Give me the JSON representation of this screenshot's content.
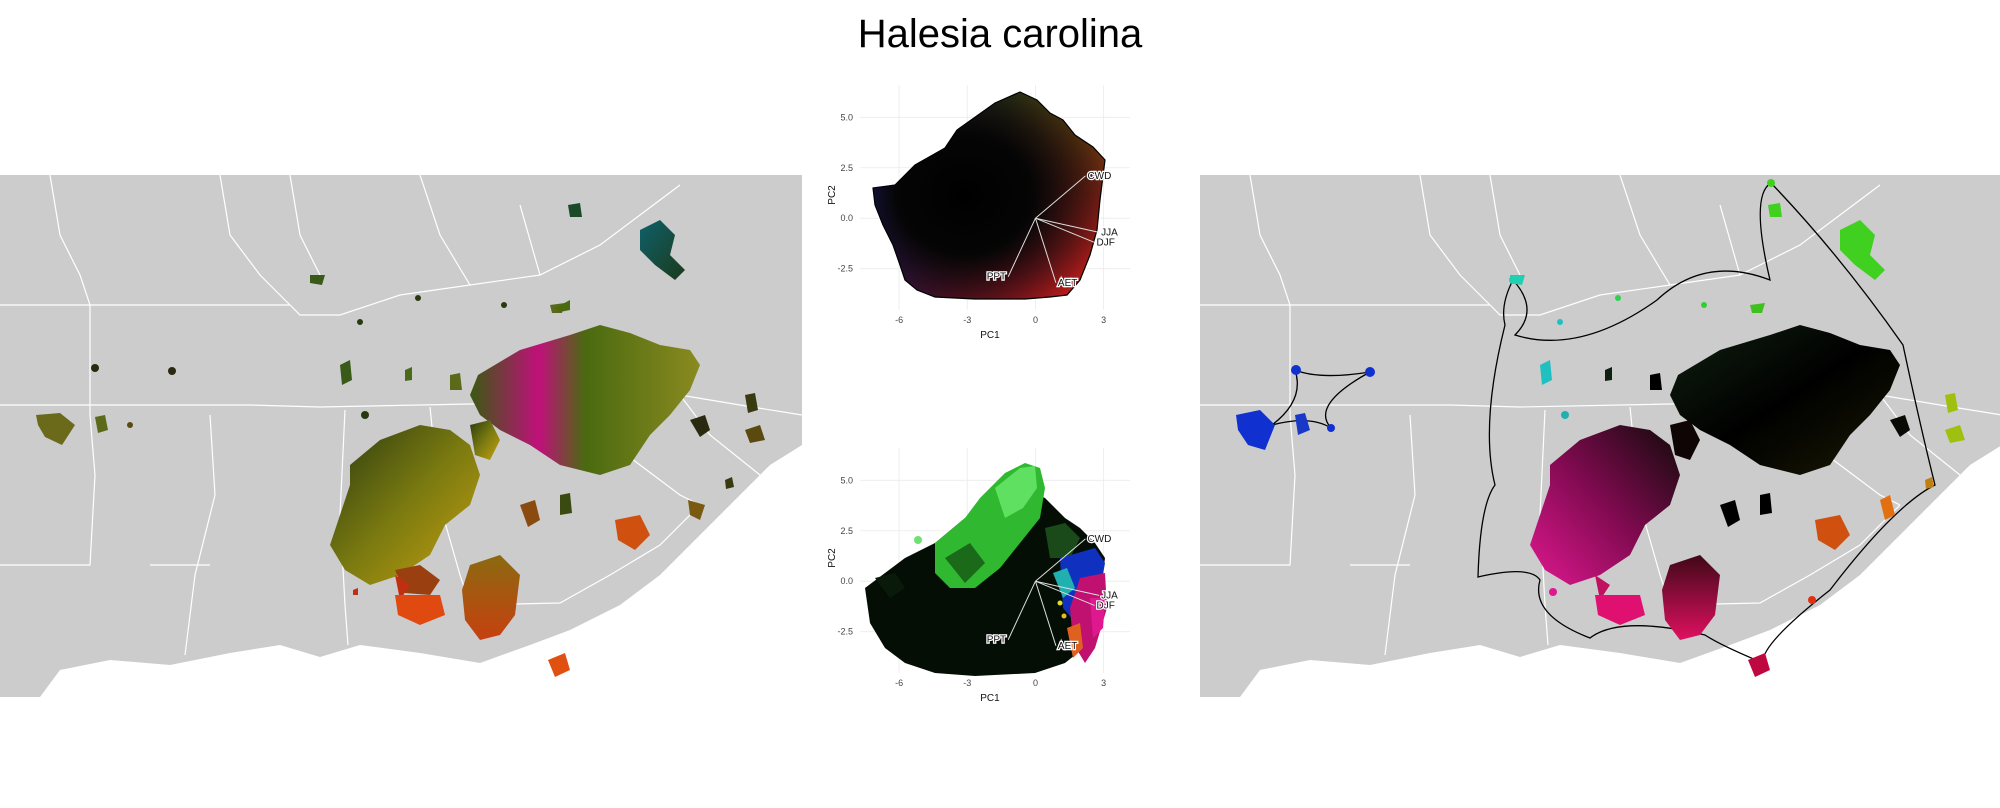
{
  "title": "Halesia carolina",
  "chart_data": [
    {
      "type": "map",
      "panel": "left",
      "background_color": "#cccccc",
      "boundary_color": "#ffffff",
      "patch_colors": [
        "#1a2a10",
        "#4a6a10",
        "#8a8a10",
        "#c8a010",
        "#e85010",
        "#cc2020",
        "#c0107a",
        "#10606a"
      ]
    },
    {
      "type": "scatter",
      "panel": "pca-top",
      "xlabel": "PC1",
      "ylabel": "PC2",
      "x_ticks": [
        "-6",
        "-3",
        "0",
        "3"
      ],
      "y_ticks": [
        "5.0",
        "2.5",
        "0.0",
        "-2.5"
      ],
      "xlim": [
        -7.5,
        3.5
      ],
      "ylim": [
        -4.3,
        6.6
      ],
      "grid": true,
      "vectors": [
        {
          "label": "CWD",
          "x": 2.2,
          "y": 2.1
        },
        {
          "label": "JJA",
          "x": 2.8,
          "y": -0.7
        },
        {
          "label": "DJF",
          "x": 2.6,
          "y": -1.2
        },
        {
          "label": "PPT",
          "x": -1.2,
          "y": -2.9
        },
        {
          "label": "AET",
          "x": 0.9,
          "y": -3.2
        }
      ],
      "hull_colors": {
        "top": "#20c820",
        "right": "#c8c820",
        "bottom": "#e01890",
        "left": "#2030e0",
        "center": "#000000",
        "bottom_right": "#e02010"
      }
    },
    {
      "type": "scatter",
      "panel": "pca-bottom",
      "xlabel": "PC1",
      "ylabel": "PC2",
      "x_ticks": [
        "-6",
        "-3",
        "0",
        "3"
      ],
      "y_ticks": [
        "5.0",
        "2.5",
        "0.0",
        "-2.5"
      ],
      "xlim": [
        -7.5,
        3.5
      ],
      "ylim": [
        -4.3,
        6.6
      ],
      "grid": true,
      "vectors": [
        {
          "label": "CWD",
          "x": 2.2,
          "y": 2.1
        },
        {
          "label": "JJA",
          "x": 2.8,
          "y": -0.7
        },
        {
          "label": "DJF",
          "x": 2.6,
          "y": -1.2
        },
        {
          "label": "PPT",
          "x": -1.2,
          "y": -2.9
        },
        {
          "label": "AET",
          "x": 0.9,
          "y": -3.2
        }
      ],
      "cluster_colors": [
        "#0a1a0a",
        "#104010",
        "#20a020",
        "#60e060",
        "#1030d0",
        "#e01890",
        "#20c0c0",
        "#e08020"
      ]
    },
    {
      "type": "map",
      "panel": "right",
      "background_color": "#cccccc",
      "boundary_color": "#ffffff",
      "hull_color": "#000000",
      "patch_colors": [
        "#1030d0",
        "#20c0c0",
        "#40d020",
        "#102010",
        "#000000",
        "#e01890",
        "#c00840",
        "#e06010",
        "#a0c010"
      ]
    }
  ]
}
